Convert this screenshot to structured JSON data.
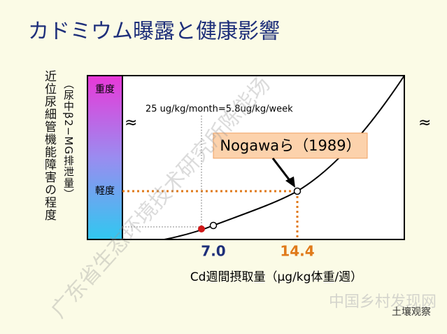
{
  "title": "カドミウム曝露と健康影響",
  "y_axis_label": "近位尿細管機能障害の程度",
  "y_axis_sublabel": "（尿中β2−MG排泄量）",
  "severity_levels": [
    "重度",
    "軽度"
  ],
  "annotation": "25 ug/kg/month=5.8ug/kg/week",
  "reference": "Nogawaら（1989）",
  "x_marks": [
    "7.0",
    "14.4"
  ],
  "x_axis_label": "Cd週間摂取量（μg/kg体重/週）",
  "watermarks": [
    "广东省生态环境技术研究所陈能场",
    "中国乡村发现网",
    "土壤观察"
  ]
}
